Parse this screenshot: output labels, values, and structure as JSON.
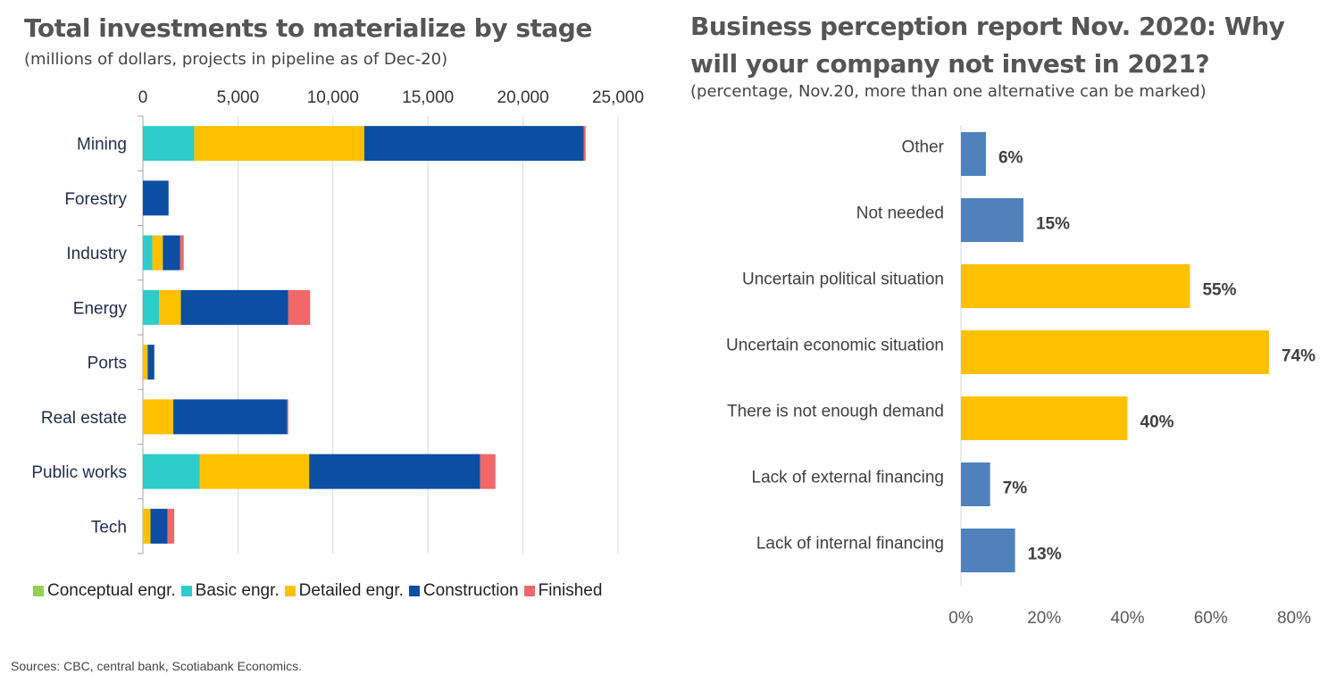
{
  "left_panel": {
    "title": "Total investments to materialize by stage",
    "subtitle": "(millions of dollars, projects in pipeline as of Dec-20)"
  },
  "right_panel": {
    "title_line1": "Business perception report Nov. 2020: Why",
    "title_line2": "will your company not invest in 2021?",
    "subtitle": "(percentage, Nov.20, more than one alternative can be marked)"
  },
  "source": "Sources: CBC, central bank, Scotiabank Economics.",
  "chart_data": [
    {
      "type": "bar",
      "orientation": "horizontal",
      "stacked": true,
      "title": "Total investments to materialize by stage",
      "subtitle": "(millions of dollars, projects in pipeline as of Dec-20)",
      "categories": [
        "Mining",
        "Forestry",
        "Industry",
        "Energy",
        "Ports",
        "Real estate",
        "Public works",
        "Tech"
      ],
      "series": [
        {
          "name": "Conceptual engr.",
          "color": "#92d050",
          "values": [
            0,
            0,
            0,
            0,
            0,
            0,
            0,
            0
          ]
        },
        {
          "name": "Basic engr.",
          "color": "#2ecccb",
          "values": [
            2700,
            0,
            500,
            850,
            0,
            0,
            3000,
            0
          ]
        },
        {
          "name": "Detailed engr.",
          "color": "#ffc000",
          "values": [
            8950,
            0,
            550,
            1150,
            250,
            1600,
            5750,
            400
          ]
        },
        {
          "name": "Construction",
          "color": "#0b4ea2",
          "values": [
            11550,
            1350,
            900,
            5650,
            350,
            6000,
            9000,
            900
          ]
        },
        {
          "name": "Finished",
          "color": "#f0686a",
          "values": [
            100,
            0,
            200,
            1150,
            0,
            50,
            800,
            350
          ]
        }
      ],
      "xlim": [
        0,
        25000
      ],
      "xticks": [
        0,
        5000,
        10000,
        15000,
        20000,
        25000
      ],
      "xtick_labels": [
        "0",
        "5,000",
        "10,000",
        "15,000",
        "20,000",
        "25,000"
      ],
      "xaxis_position": "top",
      "grid": true,
      "legend_position": "bottom"
    },
    {
      "type": "bar",
      "orientation": "horizontal",
      "title": "Business perception report Nov. 2020: Why will your company not invest in 2021?",
      "subtitle": "(percentage, Nov.20, more than one alternative can be marked)",
      "categories": [
        "Other",
        "Not needed",
        "Uncertain political situation",
        "Uncertain economic situation",
        "There is not enough demand",
        "Lack of external financing",
        "Lack of internal financing"
      ],
      "values": [
        6,
        15,
        55,
        74,
        40,
        7,
        13
      ],
      "data_labels": [
        "6%",
        "15%",
        "55%",
        "74%",
        "40%",
        "7%",
        "13%"
      ],
      "colors": [
        "#4f81bd",
        "#4f81bd",
        "#ffc000",
        "#ffc000",
        "#ffc000",
        "#4f81bd",
        "#4f81bd"
      ],
      "xlim": [
        0,
        80
      ],
      "xticks": [
        0,
        20,
        40,
        60,
        80
      ],
      "xtick_labels": [
        "0%",
        "20%",
        "40%",
        "60%",
        "80%"
      ],
      "grid": false,
      "legend": false
    }
  ]
}
